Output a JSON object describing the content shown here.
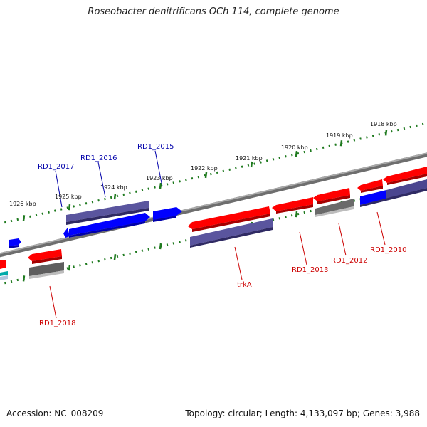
{
  "title": "Roseobacter denitrificans OCh 114, complete genome",
  "footer": {
    "accession": "Accession: NC_008209",
    "summary": "Topology: circular; Length: 4,133,097 bp; Genes: 3,988"
  },
  "colors": {
    "background": "#ffffff",
    "backbone": "#7f7f7f",
    "tick": "#1f7a1f",
    "forward_strand_label": "#0000aa",
    "reverse_strand_label": "#cc0000",
    "blue_gene": "#0000ff",
    "navy_gene": "#4b4690",
    "red_gene": "#ff0000",
    "gray_gene": "#606060",
    "cyan_gene": "#00aaaa"
  },
  "ruler_labels": [
    "1918 kbp",
    "1919 kbp",
    "1920 kbp",
    "1921 kbp",
    "1922 kbp",
    "1923 kbp",
    "1924 kbp",
    "1925 kbp",
    "1926 kbp"
  ],
  "gene_labels": {
    "rd1_2017": "RD1_2017",
    "rd1_2016": "RD1_2016",
    "rd1_2015": "RD1_2015",
    "rd1_2018": "RD1_2018",
    "trka": "trkA",
    "rd1_2013": "RD1_2013",
    "rd1_2012": "RD1_2012",
    "rd1_2010": "RD1_2010"
  }
}
